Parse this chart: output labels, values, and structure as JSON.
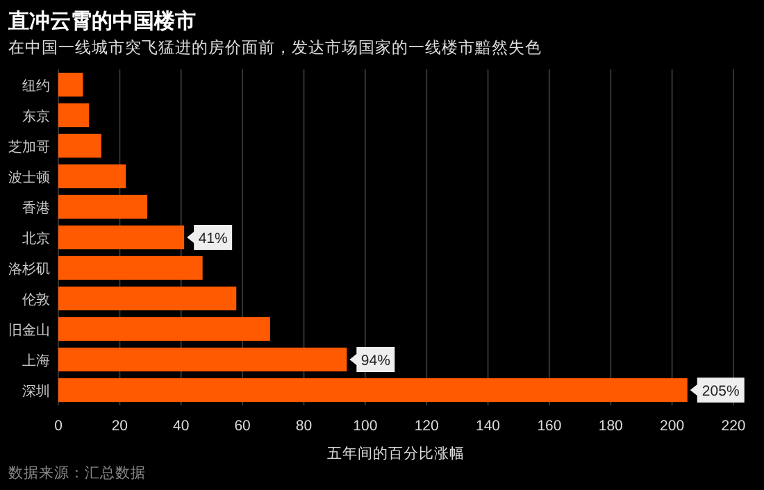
{
  "chart_data": {
    "type": "bar",
    "orientation": "horizontal",
    "title": "直冲云霄的中国楼市",
    "subtitle": "在中国一线城市突飞猛进的房价面前，发达市场国家的一线楼市黯然失色",
    "categories": [
      "纽约",
      "东京",
      "芝加哥",
      "波士顿",
      "香港",
      "北京",
      "洛杉矶",
      "伦敦",
      "旧金山",
      "上海",
      "深圳"
    ],
    "values": [
      8,
      10,
      14,
      22,
      29,
      41,
      47,
      58,
      69,
      94,
      205
    ],
    "value_labels": [
      null,
      null,
      null,
      null,
      null,
      "41%",
      null,
      null,
      null,
      "94%",
      "205%"
    ],
    "color": "#ff5a00",
    "xlim": [
      0,
      220
    ],
    "xticks": [
      0,
      20,
      40,
      60,
      80,
      100,
      120,
      140,
      160,
      180,
      200,
      220
    ],
    "xlabel": "五年间的百分比涨幅",
    "grid": "x",
    "annotations": [
      "数据来源：汇总数据"
    ]
  }
}
